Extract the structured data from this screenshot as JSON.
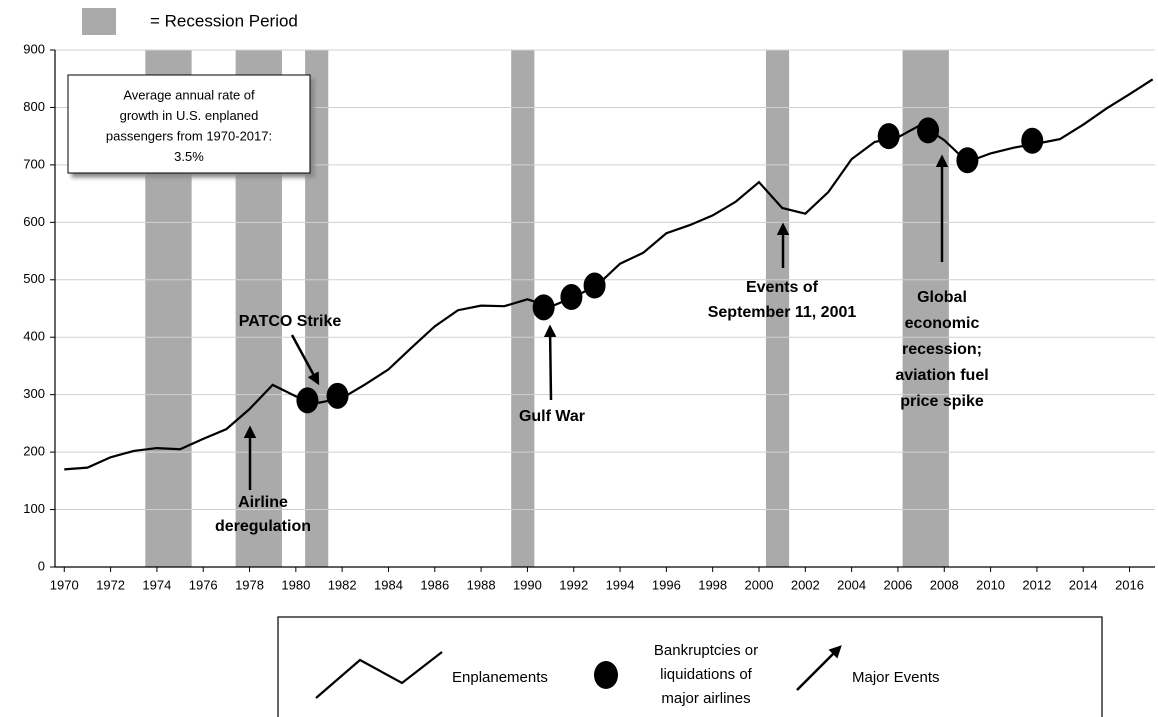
{
  "chart_data": {
    "type": "line",
    "recession_legend": "= Recession Period",
    "x": [
      1970,
      1971,
      1972,
      1973,
      1974,
      1975,
      1976,
      1977,
      1978,
      1979,
      1980,
      1981,
      1982,
      1983,
      1984,
      1985,
      1986,
      1987,
      1988,
      1989,
      1990,
      1991,
      1992,
      1993,
      1994,
      1995,
      1996,
      1997,
      1998,
      1999,
      2000,
      2001,
      2002,
      2003,
      2004,
      2005,
      2006,
      2007,
      2008,
      2009,
      2010,
      2011,
      2012,
      2013,
      2014,
      2015,
      2016,
      2017
    ],
    "series": [
      {
        "name": "Enplanements",
        "color": "#000000",
        "values": [
          170,
          173,
          191,
          202,
          207,
          205,
          223,
          240,
          275,
          317,
          297,
          286,
          294,
          318,
          344,
          382,
          419,
          447,
          455,
          454,
          466,
          453,
          470,
          490,
          528,
          547,
          581,
          595,
          612,
          636,
          670,
          625,
          615,
          653,
          710,
          740,
          748,
          770,
          743,
          705,
          720,
          730,
          737,
          745,
          770,
          798,
          823,
          849
        ]
      }
    ],
    "bankruptcies": {
      "name": "Bankruptcies or liquidations of major airlines",
      "label_lines": [
        "Bankruptcies or",
        "liquidations of",
        "major airlines"
      ],
      "color": "#000000",
      "x": [
        1980.5,
        1981.8,
        1990.7,
        1991.9,
        1992.9,
        2005.6,
        2007.3,
        2009.0,
        2011.8
      ],
      "values": [
        290,
        298,
        452,
        470,
        490,
        750,
        760,
        708,
        742
      ]
    },
    "recessions": [
      [
        1973.5,
        1975.5
      ],
      [
        1977.4,
        1979.4
      ],
      [
        1980.4,
        1981.4
      ],
      [
        1989.3,
        1990.3
      ],
      [
        2000.3,
        2001.3
      ],
      [
        2006.2,
        2008.2
      ]
    ],
    "recession_color": "#aaaaaa",
    "events_legend": "Major Events",
    "annotations": [
      {
        "lines": [
          "Airline",
          "deregulation"
        ]
      },
      {
        "lines": [
          "PATCO Strike"
        ]
      },
      {
        "lines": [
          "Gulf War"
        ]
      },
      {
        "lines": [
          "Events of",
          "September 11, 2001"
        ]
      },
      {
        "lines": [
          "Global",
          "economic",
          "recession;",
          "aviation fuel",
          "price spike"
        ]
      }
    ],
    "note": [
      "Average annual rate of",
      "growth in U.S. enplaned",
      "passengers from 1970-2017:",
      "3.5%"
    ],
    "xlim": [
      1969.6,
      2017.1
    ],
    "xticks": [
      1970,
      1972,
      1974,
      1976,
      1978,
      1980,
      1982,
      1984,
      1986,
      1988,
      1990,
      1992,
      1994,
      1996,
      1998,
      2000,
      2002,
      2004,
      2006,
      2008,
      2010,
      2012,
      2014,
      2016
    ],
    "ylim": [
      0,
      900
    ],
    "yticks": [
      0,
      100,
      200,
      300,
      400,
      500,
      600,
      700,
      800,
      900
    ],
    "grid": true
  }
}
